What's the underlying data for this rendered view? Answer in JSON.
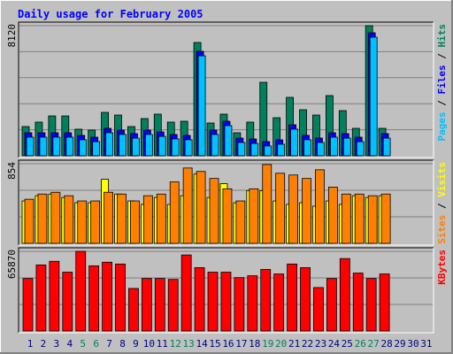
{
  "chart_data": [
    {
      "type": "bar",
      "title": "Daily usage for February 2005",
      "legend_separator": " / ",
      "ylim": [
        0,
        8120
      ],
      "yticks": [
        8120
      ],
      "series": [
        {
          "name": "Hits",
          "color": "#00805c",
          "values": [
            1823,
            2100,
            2486,
            2486,
            1657,
            1602,
            2707,
            2541,
            1823,
            2320,
            2596,
            2100,
            2154,
            7070,
            2044,
            2596,
            1436,
            2100,
            4585,
            2375,
            3646,
            2872,
            2541,
            3756,
            2817,
            1712,
            8120,
            1712,
            null,
            null,
            null
          ]
        },
        {
          "name": "Files",
          "color": "#0000ff",
          "values": [
            1436,
            1436,
            1436,
            1436,
            1271,
            1160,
            1712,
            1602,
            1381,
            1602,
            1491,
            1326,
            1271,
            6518,
            1602,
            2154,
            1105,
            1050,
            884,
            994,
            1933,
            1271,
            1105,
            1436,
            1381,
            1160,
            7678,
            1381,
            null,
            null,
            null
          ]
        },
        {
          "name": "Pages",
          "color": "#00c0ff",
          "values": [
            1160,
            1160,
            1160,
            1160,
            1000,
            880,
            1440,
            1330,
            1100,
            1330,
            1210,
            1050,
            1000,
            6240,
            1330,
            1880,
            830,
            770,
            610,
            720,
            1660,
            1000,
            830,
            1160,
            1100,
            880,
            7400,
            1100,
            null,
            null,
            null
          ]
        }
      ]
    },
    {
      "type": "bar",
      "ylim": [
        0,
        854
      ],
      "yticks": [
        854
      ],
      "series": [
        {
          "name": "Visits",
          "color": "#ffff00",
          "values": [
            455,
            511,
            529,
            492,
            436,
            436,
            687,
            529,
            455,
            418,
            492,
            418,
            511,
            743,
            492,
            640,
            436,
            566,
            566,
            455,
            418,
            436,
            399,
            455,
            418,
            511,
            492,
            511,
            null,
            null,
            null
          ]
        },
        {
          "name": "Sites",
          "color": "#ff8000",
          "values": [
            473,
            529,
            548,
            511,
            455,
            455,
            548,
            529,
            455,
            511,
            529,
            659,
            808,
            771,
            696,
            585,
            455,
            585,
            845,
            752,
            733,
            696,
            789,
            603,
            529,
            529,
            511,
            529,
            null,
            null,
            null
          ]
        }
      ]
    },
    {
      "type": "bar",
      "ylim": [
        0,
        65870
      ],
      "yticks": [
        65870
      ],
      "categories": [
        1,
        2,
        3,
        4,
        5,
        6,
        7,
        8,
        9,
        10,
        11,
        12,
        13,
        14,
        15,
        16,
        17,
        18,
        19,
        20,
        21,
        22,
        23,
        24,
        25,
        26,
        27,
        28,
        29,
        30,
        31
      ],
      "category_colors": [
        "#000080",
        "#000080",
        "#000080",
        "#000080",
        "#00805c",
        "#00805c",
        "#000080",
        "#000080",
        "#000080",
        "#000080",
        "#000080",
        "#00805c",
        "#00805c",
        "#000080",
        "#000080",
        "#000080",
        "#000080",
        "#000080",
        "#00805c",
        "#00805c",
        "#000080",
        "#000080",
        "#000080",
        "#000080",
        "#000080",
        "#00805c",
        "#00805c",
        "#000080",
        "#000080",
        "#000080",
        "#000080"
      ],
      "series": [
        {
          "name": "KBytes",
          "color": "#ff0000",
          "values": [
            43413,
            54640,
            57635,
            48653,
            65870,
            53892,
            56886,
            55389,
            35180,
            43413,
            43413,
            42665,
            62874,
            52395,
            48653,
            48653,
            44162,
            45659,
            50898,
            47156,
            55389,
            52395,
            35928,
            43413,
            59880,
            47904,
            43413,
            47156,
            null,
            null,
            null
          ]
        }
      ]
    }
  ]
}
